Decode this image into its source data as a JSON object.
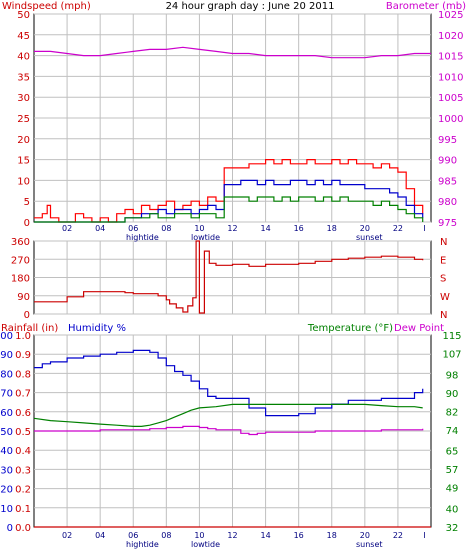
{
  "header": {
    "left_title": "Windspeed (mph)",
    "center_title": "24 hour graph day : June 20 2011",
    "right_title": "Barometer (mb)"
  },
  "colors": {
    "wind_gust": "#ff0000",
    "wind_avg": "#0000cc",
    "wind_min": "#008000",
    "barometer": "#cc00cc",
    "direction": "#cc0000",
    "humidity": "#0000cc",
    "temperature": "#008000",
    "dewpoint": "#cc00cc",
    "rain": "#cc0000",
    "grid": "#c0c0c0",
    "annotations": "#000080"
  },
  "annotations": {
    "hightide": "hightide",
    "lowtide": "lowtide",
    "sunset": "sunset"
  },
  "chart_data": [
    {
      "type": "line",
      "title": "24 hour graph day : June 20 2011",
      "xlabel": "",
      "ylabel": "Windspeed (mph)",
      "y2label": "Barometer (mb)",
      "x_ticks": [
        "02",
        "04",
        "06",
        "08",
        "10",
        "12",
        "14",
        "16",
        "18",
        "20",
        "22",
        "I"
      ],
      "x_range": [
        0,
        24
      ],
      "ylim": [
        0,
        50
      ],
      "y_ticks": [
        0,
        5,
        10,
        15,
        20,
        25,
        30,
        35,
        40,
        45,
        50
      ],
      "y2lim": [
        975,
        1025
      ],
      "y2_ticks": [
        975,
        980,
        985,
        990,
        995,
        1000,
        1005,
        1010,
        1015,
        1020,
        1025
      ],
      "series": [
        {
          "key": "gust",
          "axis": "left",
          "x": [
            0,
            0.5,
            0.8,
            1,
            1.5,
            2,
            2.5,
            3,
            3.5,
            4,
            4.5,
            5,
            5.5,
            6,
            6.5,
            7,
            7.5,
            8,
            8.5,
            9,
            9.5,
            10,
            10.5,
            11,
            11.5,
            12,
            12.5,
            13,
            13.5,
            14,
            14.5,
            15,
            15.5,
            16,
            16.5,
            17,
            17.5,
            18,
            18.5,
            19,
            19.5,
            20,
            20.5,
            21,
            21.5,
            22,
            22.5,
            23,
            23.5
          ],
          "y": [
            1,
            2,
            4,
            1,
            0,
            0,
            2,
            1,
            0,
            1,
            0,
            2,
            3,
            2,
            4,
            3,
            4,
            5,
            3,
            4,
            5,
            4,
            6,
            5,
            13,
            13,
            13,
            14,
            14,
            15,
            14,
            15,
            14,
            14,
            15,
            14,
            14,
            15,
            14,
            15,
            14,
            14,
            13,
            14,
            13,
            12,
            8,
            4,
            2
          ]
        },
        {
          "key": "avg",
          "axis": "left",
          "x": [
            0,
            1,
            2,
            3,
            4,
            5,
            5.5,
            6,
            6.5,
            7,
            7.5,
            8,
            8.5,
            9,
            9.5,
            10,
            10.5,
            11,
            11.5,
            12,
            12.5,
            13,
            13.5,
            14,
            14.5,
            15,
            15.5,
            16,
            16.5,
            17,
            17.5,
            18,
            18.5,
            19,
            19.5,
            20,
            20.5,
            21,
            21.5,
            22,
            22.5,
            23,
            23.5
          ],
          "y": [
            0,
            0,
            0,
            0,
            0,
            0,
            1,
            1,
            2,
            2,
            3,
            2,
            3,
            3,
            2,
            3,
            4,
            3,
            9,
            9,
            10,
            10,
            9,
            10,
            9,
            9,
            10,
            10,
            9,
            10,
            9,
            10,
            9,
            9,
            9,
            8,
            8,
            8,
            7,
            6,
            4,
            2,
            1
          ]
        },
        {
          "key": "min",
          "axis": "left",
          "x": [
            0,
            1,
            2,
            3,
            4,
            5,
            5.5,
            6,
            6.5,
            7,
            7.5,
            8,
            8.5,
            9,
            9.5,
            10,
            10.5,
            11,
            11.5,
            12,
            12.5,
            13,
            13.5,
            14,
            14.5,
            15,
            15.5,
            16,
            16.5,
            17,
            17.5,
            18,
            18.5,
            19,
            19.5,
            20,
            20.5,
            21,
            21.5,
            22,
            22.5,
            23,
            23.5
          ],
          "y": [
            0,
            0,
            0,
            0,
            0,
            0,
            1,
            1,
            1,
            2,
            1,
            1,
            2,
            2,
            1,
            2,
            2,
            1,
            6,
            6,
            6,
            5,
            6,
            6,
            5,
            6,
            5,
            6,
            6,
            5,
            6,
            5,
            6,
            5,
            5,
            5,
            4,
            5,
            4,
            3,
            2,
            1,
            0
          ]
        },
        {
          "key": "barometer",
          "axis": "right",
          "x": [
            0,
            1,
            2,
            3,
            4,
            5,
            6,
            7,
            8,
            9,
            10,
            11,
            12,
            13,
            14,
            15,
            16,
            17,
            18,
            19,
            20,
            21,
            22,
            23,
            24
          ],
          "y": [
            1016,
            1016,
            1015.5,
            1015,
            1015,
            1015.5,
            1016,
            1016.5,
            1016.5,
            1017,
            1016.5,
            1016,
            1015.5,
            1015.5,
            1015,
            1015,
            1015,
            1015,
            1014.5,
            1014.5,
            1014.5,
            1015,
            1015,
            1015.5,
            1015.5
          ]
        }
      ]
    },
    {
      "type": "line",
      "title": "",
      "ylabel": "",
      "x_range": [
        0,
        24
      ],
      "ylim": [
        0,
        360
      ],
      "y_ticks": [
        0,
        90,
        180,
        270,
        360
      ],
      "y2_labels": [
        "N",
        "W",
        "S",
        "E",
        "N"
      ],
      "series": [
        {
          "key": "direction",
          "x": [
            0,
            1,
            1.5,
            2,
            2.5,
            3,
            3.5,
            4,
            4.5,
            5,
            5.5,
            6,
            6.5,
            7,
            7.5,
            8,
            8.2,
            8.6,
            9,
            9.3,
            9.6,
            9.8,
            10,
            10.3,
            10.6,
            11,
            12,
            13,
            14,
            15,
            16,
            17,
            18,
            19,
            20,
            21,
            22,
            23,
            23.5
          ],
          "y": [
            60,
            60,
            60,
            85,
            85,
            110,
            110,
            110,
            110,
            110,
            105,
            100,
            100,
            100,
            90,
            70,
            50,
            30,
            10,
            40,
            80,
            360,
            5,
            310,
            250,
            240,
            245,
            235,
            245,
            245,
            250,
            260,
            270,
            275,
            280,
            285,
            280,
            270,
            265
          ]
        }
      ]
    },
    {
      "type": "line",
      "title": "",
      "xlabel": "",
      "ylabel": "Humidity %",
      "rain_label": "Rainfall (in)",
      "y2label": "Temperature (°F)",
      "dewpoint_label": "Dew Point",
      "x_range": [
        0,
        24
      ],
      "ylim": [
        0,
        100
      ],
      "humidity_ticks": [
        0,
        10,
        20,
        30,
        40,
        50,
        60,
        70,
        80,
        90,
        100
      ],
      "rain_ticks": [
        "0.0",
        "0.1",
        "0.2",
        "0.3",
        "0.4",
        "0.5",
        "0.6",
        "0.7",
        "0.8",
        "0.9",
        "1.0"
      ],
      "y2lim": [
        32,
        115
      ],
      "y2_ticks": [
        32,
        40,
        49,
        57,
        65,
        74,
        82,
        90,
        98,
        107,
        115
      ],
      "series": [
        {
          "key": "humidity",
          "axis": "left",
          "x": [
            0,
            0.5,
            1,
            2,
            3,
            4,
            5,
            6,
            6.5,
            7,
            7.5,
            8,
            8.5,
            9,
            9.5,
            10,
            10.5,
            11,
            12,
            13,
            14,
            15,
            16,
            17,
            18,
            19,
            20,
            21,
            22,
            23,
            23.5
          ],
          "y": [
            83,
            85,
            86,
            88,
            89,
            90,
            91,
            92,
            92,
            91,
            88,
            84,
            81,
            79,
            76,
            72,
            68,
            67,
            67,
            62,
            58,
            58,
            59,
            62,
            64,
            66,
            66,
            67,
            67,
            70,
            72
          ]
        },
        {
          "key": "temperature",
          "axis": "right",
          "x": [
            0,
            1,
            2,
            3,
            4,
            5,
            6,
            6.5,
            7,
            7.5,
            8,
            8.5,
            9,
            9.5,
            10,
            11,
            12,
            13,
            14,
            15,
            16,
            17,
            18,
            19,
            20,
            21,
            22,
            23,
            23.5
          ],
          "y": [
            79,
            78,
            77.5,
            77,
            76.5,
            76,
            75.5,
            75.5,
            76,
            77,
            78,
            79.5,
            81,
            82.5,
            83.5,
            84,
            85,
            85,
            85,
            85,
            85,
            85,
            85,
            85,
            85,
            84.5,
            84,
            84,
            83.5
          ]
        },
        {
          "key": "dewpoint",
          "axis": "right",
          "x": [
            0,
            1,
            2,
            3,
            4,
            5,
            6,
            7,
            8,
            9,
            9.5,
            10,
            10.5,
            11,
            12,
            12.5,
            13,
            13.5,
            14,
            15,
            16,
            17,
            18,
            19,
            20,
            21,
            22,
            23,
            23.5
          ],
          "y": [
            73.5,
            73.5,
            73.5,
            73.5,
            74,
            74,
            74,
            74.5,
            75,
            75.5,
            75.5,
            75,
            74.5,
            74,
            74,
            72.5,
            72,
            72.5,
            73,
            73,
            73,
            73.5,
            73.5,
            73.5,
            73.5,
            74,
            74,
            74,
            74.5
          ]
        },
        {
          "key": "rain",
          "axis": "left",
          "x": [
            0,
            24
          ],
          "y": [
            0,
            0
          ]
        }
      ]
    }
  ]
}
